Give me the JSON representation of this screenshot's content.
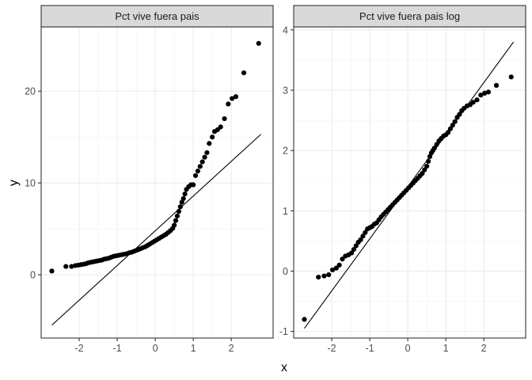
{
  "chart_data": {
    "type": "scatter",
    "xlabel": "x",
    "ylabel": "y",
    "grid": true,
    "facets": [
      {
        "title": "Pct vive fuera pais",
        "xlim": [
          -3.0,
          3.1
        ],
        "ylim": [
          -6.9,
          27.0
        ],
        "x_ticks": [
          -2,
          -1,
          0,
          1,
          2
        ],
        "x_tick_labels": [
          "-2",
          "-1",
          "0",
          "1",
          "2"
        ],
        "y_ticks": [
          0,
          10,
          20
        ],
        "y_tick_labels": [
          "0",
          "10",
          "20"
        ],
        "reference_line": {
          "x": [
            -2.72,
            2.78
          ],
          "y": [
            -5.5,
            15.3
          ]
        },
        "points": [
          [
            -2.72,
            0.4
          ],
          [
            -2.35,
            0.9
          ],
          [
            -2.2,
            0.9
          ],
          [
            -2.1,
            1.0
          ],
          [
            -2.02,
            1.05
          ],
          [
            -1.95,
            1.1
          ],
          [
            -1.88,
            1.15
          ],
          [
            -1.82,
            1.2
          ],
          [
            -1.76,
            1.3
          ],
          [
            -1.7,
            1.35
          ],
          [
            -1.64,
            1.4
          ],
          [
            -1.58,
            1.45
          ],
          [
            -1.52,
            1.5
          ],
          [
            -1.46,
            1.55
          ],
          [
            -1.4,
            1.6
          ],
          [
            -1.34,
            1.7
          ],
          [
            -1.28,
            1.75
          ],
          [
            -1.22,
            1.8
          ],
          [
            -1.16,
            1.9
          ],
          [
            -1.1,
            2.0
          ],
          [
            -1.04,
            2.05
          ],
          [
            -0.98,
            2.1
          ],
          [
            -0.92,
            2.15
          ],
          [
            -0.86,
            2.2
          ],
          [
            -0.8,
            2.25
          ],
          [
            -0.74,
            2.3
          ],
          [
            -0.68,
            2.4
          ],
          [
            -0.62,
            2.45
          ],
          [
            -0.56,
            2.55
          ],
          [
            -0.5,
            2.65
          ],
          [
            -0.44,
            2.75
          ],
          [
            -0.38,
            2.85
          ],
          [
            -0.32,
            2.95
          ],
          [
            -0.26,
            3.05
          ],
          [
            -0.2,
            3.2
          ],
          [
            -0.14,
            3.35
          ],
          [
            -0.08,
            3.5
          ],
          [
            -0.02,
            3.65
          ],
          [
            0.04,
            3.8
          ],
          [
            0.1,
            3.95
          ],
          [
            0.16,
            4.1
          ],
          [
            0.22,
            4.25
          ],
          [
            0.28,
            4.4
          ],
          [
            0.34,
            4.6
          ],
          [
            0.4,
            4.8
          ],
          [
            0.46,
            5.05
          ],
          [
            0.5,
            5.4
          ],
          [
            0.54,
            5.9
          ],
          [
            0.58,
            6.4
          ],
          [
            0.62,
            6.9
          ],
          [
            0.66,
            7.4
          ],
          [
            0.7,
            7.9
          ],
          [
            0.74,
            8.3
          ],
          [
            0.78,
            8.8
          ],
          [
            0.82,
            9.3
          ],
          [
            0.88,
            9.6
          ],
          [
            0.94,
            9.8
          ],
          [
            1.0,
            9.8
          ],
          [
            1.06,
            10.8
          ],
          [
            1.12,
            11.3
          ],
          [
            1.18,
            11.8
          ],
          [
            1.24,
            12.3
          ],
          [
            1.3,
            12.8
          ],
          [
            1.36,
            13.3
          ],
          [
            1.42,
            14.3
          ],
          [
            1.5,
            15.0
          ],
          [
            1.56,
            15.6
          ],
          [
            1.64,
            15.8
          ],
          [
            1.72,
            16.1
          ],
          [
            1.82,
            17.0
          ],
          [
            1.92,
            18.6
          ],
          [
            2.02,
            19.2
          ],
          [
            2.12,
            19.4
          ],
          [
            2.33,
            22.0
          ],
          [
            2.72,
            25.2
          ]
        ]
      },
      {
        "title": "Pct vive fuera pais log",
        "xlim": [
          -3.0,
          3.1
        ],
        "ylim": [
          -1.11,
          4.05
        ],
        "x_ticks": [
          -2,
          -1,
          0,
          1,
          2
        ],
        "x_tick_labels": [
          "-2",
          "-1",
          "0",
          "1",
          "2"
        ],
        "y_ticks": [
          -1,
          0,
          1,
          2,
          3,
          4
        ],
        "y_tick_labels": [
          "-1",
          "0",
          "1",
          "2",
          "3",
          "4"
        ],
        "reference_line": {
          "x": [
            -2.72,
            2.78
          ],
          "y": [
            -0.95,
            3.8
          ]
        },
        "points": [
          [
            -2.72,
            -0.8
          ],
          [
            -2.35,
            -0.1
          ],
          [
            -2.2,
            -0.08
          ],
          [
            -2.08,
            -0.06
          ],
          [
            -1.98,
            0.02
          ],
          [
            -1.88,
            0.05
          ],
          [
            -1.8,
            0.1
          ],
          [
            -1.72,
            0.2
          ],
          [
            -1.64,
            0.25
          ],
          [
            -1.56,
            0.27
          ],
          [
            -1.48,
            0.3
          ],
          [
            -1.42,
            0.36
          ],
          [
            -1.36,
            0.42
          ],
          [
            -1.3,
            0.48
          ],
          [
            -1.24,
            0.52
          ],
          [
            -1.18,
            0.58
          ],
          [
            -1.12,
            0.64
          ],
          [
            -1.06,
            0.7
          ],
          [
            -1.0,
            0.72
          ],
          [
            -0.94,
            0.74
          ],
          [
            -0.88,
            0.78
          ],
          [
            -0.82,
            0.8
          ],
          [
            -0.76,
            0.85
          ],
          [
            -0.7,
            0.9
          ],
          [
            -0.64,
            0.94
          ],
          [
            -0.58,
            0.98
          ],
          [
            -0.52,
            1.02
          ],
          [
            -0.46,
            1.06
          ],
          [
            -0.4,
            1.1
          ],
          [
            -0.34,
            1.14
          ],
          [
            -0.28,
            1.18
          ],
          [
            -0.22,
            1.22
          ],
          [
            -0.16,
            1.26
          ],
          [
            -0.1,
            1.3
          ],
          [
            -0.04,
            1.34
          ],
          [
            0.02,
            1.38
          ],
          [
            0.08,
            1.42
          ],
          [
            0.14,
            1.46
          ],
          [
            0.2,
            1.5
          ],
          [
            0.26,
            1.54
          ],
          [
            0.32,
            1.58
          ],
          [
            0.38,
            1.62
          ],
          [
            0.44,
            1.68
          ],
          [
            0.5,
            1.74
          ],
          [
            0.54,
            1.82
          ],
          [
            0.58,
            1.9
          ],
          [
            0.62,
            1.96
          ],
          [
            0.66,
            2.0
          ],
          [
            0.7,
            2.04
          ],
          [
            0.76,
            2.1
          ],
          [
            0.82,
            2.16
          ],
          [
            0.88,
            2.2
          ],
          [
            0.94,
            2.24
          ],
          [
            1.0,
            2.26
          ],
          [
            1.06,
            2.3
          ],
          [
            1.12,
            2.36
          ],
          [
            1.18,
            2.42
          ],
          [
            1.24,
            2.48
          ],
          [
            1.3,
            2.55
          ],
          [
            1.36,
            2.6
          ],
          [
            1.42,
            2.66
          ],
          [
            1.48,
            2.7
          ],
          [
            1.56,
            2.74
          ],
          [
            1.64,
            2.76
          ],
          [
            1.72,
            2.8
          ],
          [
            1.82,
            2.84
          ],
          [
            1.92,
            2.92
          ],
          [
            2.02,
            2.95
          ],
          [
            2.12,
            2.97
          ],
          [
            2.33,
            3.08
          ],
          [
            2.72,
            3.22
          ]
        ]
      }
    ]
  }
}
